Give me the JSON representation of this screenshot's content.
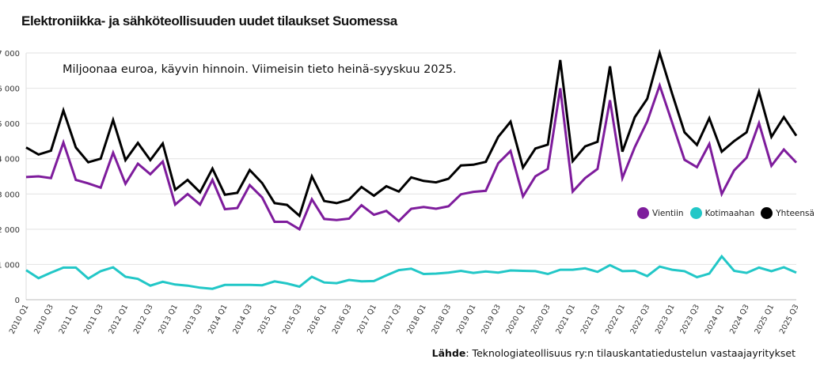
{
  "title": "Elektroniikka- ja sähköteollisuuden uudet tilaukset Suomessa",
  "subtitle": "Miljoonaa euroa, käyvin hinnoin. Viimeisin tieto heinä-syyskuu 2025.",
  "source_label": "Lähde",
  "source_text": ": Teknologiateollisuus ry:n tilauskantatiedustelun vastaajayritykset",
  "chart_data": {
    "type": "line",
    "title": "Elektroniikka- ja sähköteollisuuden uudet tilaukset Suomessa",
    "ylabel": "Miljoonaa euroa",
    "ylim": [
      0,
      7000
    ],
    "yticks": [
      0,
      1000,
      2000,
      3000,
      4000,
      5000,
      6000,
      7000
    ],
    "ytick_labels": [
      "0",
      "1 000",
      "2 000",
      "3 000",
      "4 000",
      "5 000",
      "6 000",
      "7 000"
    ],
    "grid": true,
    "legend_position": "right",
    "x_start_year": 2010,
    "x_tick_every": 2,
    "series": [
      {
        "name": "Vientiin",
        "color": "#7e1c9c",
        "values": [
          3480,
          3500,
          3450,
          4460,
          3400,
          3300,
          3180,
          4170,
          3290,
          3860,
          3560,
          3920,
          2700,
          3000,
          2700,
          3400,
          2570,
          2600,
          3250,
          2900,
          2210,
          2210,
          2000,
          2850,
          2290,
          2260,
          2300,
          2680,
          2410,
          2520,
          2230,
          2580,
          2630,
          2580,
          2650,
          2990,
          3060,
          3090,
          3870,
          4220,
          2930,
          3500,
          3710,
          6000,
          3070,
          3450,
          3710,
          5660,
          3450,
          4330,
          5060,
          6080,
          5030,
          3970,
          3760,
          4420,
          3000,
          3670,
          4030,
          5010,
          3800,
          4260,
          3890
        ]
      },
      {
        "name": "Kotimaahan",
        "color": "#22c7c7",
        "values": [
          840,
          610,
          770,
          910,
          910,
          600,
          810,
          920,
          650,
          590,
          400,
          510,
          430,
          400,
          340,
          310,
          420,
          420,
          420,
          410,
          520,
          460,
          370,
          650,
          490,
          470,
          560,
          520,
          530,
          690,
          840,
          880,
          730,
          740,
          770,
          820,
          760,
          800,
          770,
          830,
          820,
          810,
          730,
          850,
          850,
          890,
          790,
          980,
          810,
          820,
          670,
          940,
          850,
          810,
          640,
          740,
          1230,
          820,
          760,
          910,
          810,
          920,
          770
        ]
      },
      {
        "name": "Yhteensä",
        "color": "#000000",
        "values": [
          4320,
          4120,
          4230,
          5370,
          4320,
          3900,
          4000,
          5100,
          3960,
          4450,
          3960,
          4430,
          3120,
          3400,
          3050,
          3720,
          2980,
          3030,
          3680,
          3310,
          2740,
          2690,
          2380,
          3500,
          2800,
          2740,
          2840,
          3200,
          2950,
          3220,
          3070,
          3470,
          3370,
          3330,
          3430,
          3810,
          3830,
          3910,
          4620,
          5050,
          3750,
          4290,
          4400,
          6800,
          3930,
          4350,
          4480,
          6620,
          4200,
          5180,
          5700,
          7000,
          5850,
          4750,
          4390,
          5150,
          4200,
          4500,
          4750,
          5900,
          4620,
          5180,
          4650
        ]
      }
    ]
  }
}
